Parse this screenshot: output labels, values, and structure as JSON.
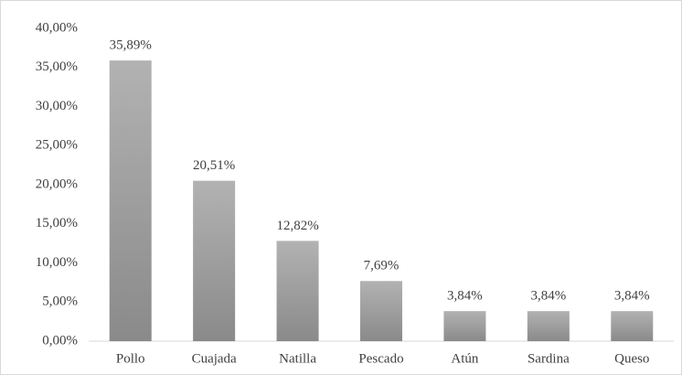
{
  "chart_data": {
    "type": "bar",
    "categories": [
      "Pollo",
      "Cuajada",
      "Natilla",
      "Pescado",
      "Atún",
      "Sardina",
      "Queso"
    ],
    "values": [
      35.89,
      20.51,
      12.82,
      7.69,
      3.84,
      3.84,
      3.84
    ],
    "value_labels": [
      "35,89%",
      "20,51%",
      "12,82%",
      "7,69%",
      "3,84%",
      "3,84%",
      "3,84%"
    ],
    "color": "#b2b2b2",
    "ylim": [
      0,
      40
    ],
    "yticks": [
      {
        "value": 0,
        "label": "0,00%"
      },
      {
        "value": 5,
        "label": "5,00%"
      },
      {
        "value": 10,
        "label": "10,00%"
      },
      {
        "value": 15,
        "label": "15,00%"
      },
      {
        "value": 20,
        "label": "20,00%"
      },
      {
        "value": 25,
        "label": "25,00%"
      },
      {
        "value": 30,
        "label": "30,00%"
      },
      {
        "value": 35,
        "label": "35,00%"
      },
      {
        "value": 40,
        "label": "40,00%"
      }
    ],
    "grid": false
  }
}
